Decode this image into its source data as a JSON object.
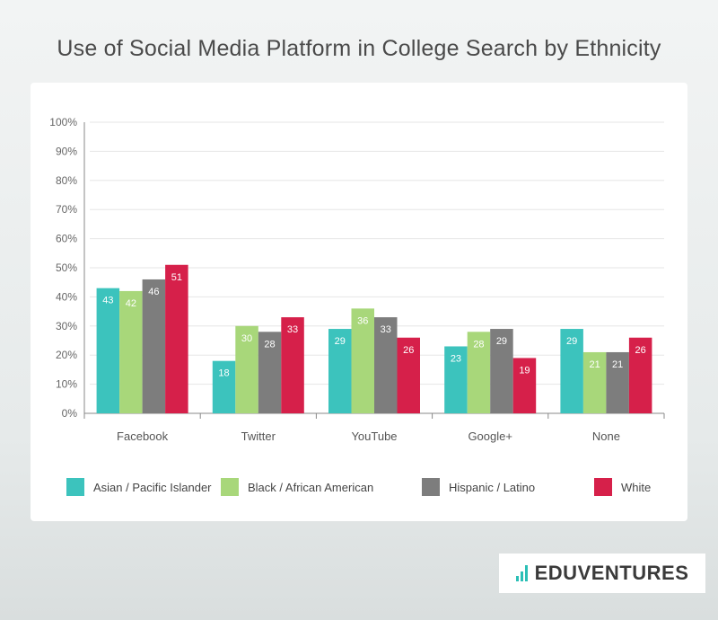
{
  "chart_data": {
    "type": "bar",
    "title": "Use of Social Media Platform in College Search by Ethnicity",
    "categories": [
      "Facebook",
      "Twitter",
      "YouTube",
      "Google+",
      "None"
    ],
    "series": [
      {
        "name": "Asian / Pacific Islander",
        "color": "#3cc3bd",
        "values": [
          43,
          18,
          29,
          23,
          29
        ]
      },
      {
        "name": "Black / African American",
        "color": "#a8d77a",
        "values": [
          42,
          30,
          36,
          28,
          21
        ]
      },
      {
        "name": "Hispanic / Latino",
        "color": "#7d7d7d",
        "values": [
          46,
          28,
          33,
          29,
          21
        ]
      },
      {
        "name": "White",
        "color": "#d6204a",
        "values": [
          51,
          33,
          26,
          19,
          26
        ]
      }
    ],
    "yticks": [
      "0%",
      "10%",
      "20%",
      "30%",
      "40%",
      "50%",
      "60%",
      "70%",
      "80%",
      "90%",
      "100%"
    ],
    "ylim": [
      0,
      100
    ],
    "grid": true,
    "legend_position": "bottom"
  },
  "brand": {
    "name": "EDUVENTURES",
    "accent": "#2bbfb6"
  }
}
